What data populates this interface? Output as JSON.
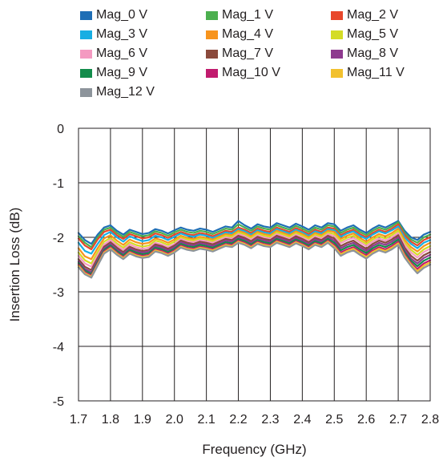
{
  "chart_data": {
    "type": "line",
    "title": "",
    "xlabel": "Frequency (GHz)",
    "ylabel": "Insertion Loss (dB)",
    "xlim": [
      1.7,
      2.8
    ],
    "ylim": [
      -5,
      0
    ],
    "xticks": [
      "1.7",
      "1.8",
      "1.9",
      "2.0",
      "2.1",
      "2.2",
      "2.3",
      "2.4",
      "2.5",
      "2.6",
      "2.7",
      "2.8"
    ],
    "yticks": [
      "0",
      "-1",
      "-2",
      "-3",
      "-4",
      "-5"
    ],
    "grid": true,
    "legend": "top",
    "x": [
      1.7,
      1.72,
      1.74,
      1.76,
      1.78,
      1.8,
      1.82,
      1.84,
      1.86,
      1.88,
      1.9,
      1.92,
      1.94,
      1.96,
      1.98,
      2.0,
      2.02,
      2.04,
      2.06,
      2.08,
      2.1,
      2.12,
      2.14,
      2.16,
      2.18,
      2.2,
      2.22,
      2.24,
      2.26,
      2.28,
      2.3,
      2.32,
      2.34,
      2.36,
      2.38,
      2.4,
      2.42,
      2.44,
      2.46,
      2.48,
      2.5,
      2.52,
      2.54,
      2.56,
      2.58,
      2.6,
      2.62,
      2.64,
      2.66,
      2.68,
      2.7,
      2.72,
      2.74,
      2.76,
      2.78,
      2.8
    ],
    "series": [
      {
        "name": "Mag_0 V",
        "color": "#1f6eb5",
        "values": [
          -1.92,
          -2.05,
          -2.12,
          -1.95,
          -1.82,
          -1.78,
          -1.88,
          -1.95,
          -1.86,
          -1.9,
          -1.94,
          -1.92,
          -1.85,
          -1.88,
          -1.93,
          -1.87,
          -1.82,
          -1.86,
          -1.88,
          -1.84,
          -1.86,
          -1.9,
          -1.85,
          -1.8,
          -1.82,
          -1.7,
          -1.78,
          -1.84,
          -1.76,
          -1.8,
          -1.82,
          -1.74,
          -1.78,
          -1.82,
          -1.75,
          -1.8,
          -1.86,
          -1.78,
          -1.82,
          -1.74,
          -1.76,
          -1.88,
          -1.82,
          -1.78,
          -1.86,
          -1.92,
          -1.84,
          -1.78,
          -1.82,
          -1.76,
          -1.7,
          -1.88,
          -2.0,
          -2.05,
          -1.95,
          -1.9
        ]
      },
      {
        "name": "Mag_1 V",
        "color": "#4caf4f",
        "values": [
          -1.98,
          -2.1,
          -2.18,
          -2.0,
          -1.86,
          -1.82,
          -1.92,
          -1.99,
          -1.9,
          -1.94,
          -1.98,
          -1.96,
          -1.89,
          -1.92,
          -1.97,
          -1.91,
          -1.86,
          -1.9,
          -1.92,
          -1.88,
          -1.9,
          -1.94,
          -1.89,
          -1.84,
          -1.86,
          -1.76,
          -1.82,
          -1.88,
          -1.8,
          -1.84,
          -1.86,
          -1.78,
          -1.82,
          -1.86,
          -1.79,
          -1.84,
          -1.9,
          -1.82,
          -1.86,
          -1.78,
          -1.8,
          -1.92,
          -1.86,
          -1.82,
          -1.9,
          -1.96,
          -1.88,
          -1.82,
          -1.86,
          -1.8,
          -1.72,
          -1.92,
          -2.04,
          -2.1,
          -2.0,
          -1.95
        ]
      },
      {
        "name": "Mag_2 V",
        "color": "#e8472b",
        "values": [
          -2.02,
          -2.15,
          -2.22,
          -2.04,
          -1.9,
          -1.86,
          -1.96,
          -2.03,
          -1.94,
          -1.98,
          -2.02,
          -2.0,
          -1.93,
          -1.96,
          -2.01,
          -1.95,
          -1.9,
          -1.94,
          -1.96,
          -1.92,
          -1.94,
          -1.98,
          -1.93,
          -1.88,
          -1.9,
          -1.82,
          -1.86,
          -1.92,
          -1.84,
          -1.88,
          -1.9,
          -1.82,
          -1.86,
          -1.9,
          -1.83,
          -1.88,
          -1.94,
          -1.86,
          -1.9,
          -1.82,
          -1.84,
          -1.96,
          -1.9,
          -1.86,
          -1.94,
          -2.0,
          -1.92,
          -1.86,
          -1.9,
          -1.84,
          -1.76,
          -1.96,
          -2.08,
          -2.15,
          -2.05,
          -2.0
        ]
      },
      {
        "name": "Mag_3 V",
        "color": "#17aee3",
        "values": [
          -2.1,
          -2.25,
          -2.3,
          -2.12,
          -1.96,
          -1.9,
          -2.0,
          -2.08,
          -1.98,
          -2.03,
          -2.07,
          -2.05,
          -1.97,
          -2.0,
          -2.05,
          -1.99,
          -1.93,
          -1.97,
          -1.99,
          -1.95,
          -1.97,
          -2.01,
          -1.96,
          -1.91,
          -1.93,
          -1.85,
          -1.89,
          -1.95,
          -1.87,
          -1.91,
          -1.93,
          -1.85,
          -1.89,
          -1.93,
          -1.86,
          -1.91,
          -1.97,
          -1.89,
          -1.93,
          -1.85,
          -1.87,
          -1.99,
          -1.93,
          -1.89,
          -1.97,
          -2.03,
          -1.95,
          -1.89,
          -1.93,
          -1.87,
          -1.8,
          -2.0,
          -2.12,
          -2.2,
          -2.1,
          -2.05
        ]
      },
      {
        "name": "Mag_4 V",
        "color": "#f7941d",
        "values": [
          -2.2,
          -2.35,
          -2.4,
          -2.2,
          -2.02,
          -1.96,
          -2.06,
          -2.14,
          -2.04,
          -2.09,
          -2.12,
          -2.1,
          -2.02,
          -2.05,
          -2.1,
          -2.04,
          -1.97,
          -2.01,
          -2.03,
          -1.99,
          -2.01,
          -2.04,
          -1.99,
          -1.94,
          -1.96,
          -1.88,
          -1.92,
          -1.98,
          -1.9,
          -1.94,
          -1.96,
          -1.88,
          -1.92,
          -1.96,
          -1.89,
          -1.94,
          -2.0,
          -1.92,
          -1.96,
          -1.88,
          -1.9,
          -2.03,
          -1.97,
          -1.93,
          -2.01,
          -2.08,
          -2.0,
          -1.94,
          -1.98,
          -1.92,
          -1.84,
          -2.05,
          -2.18,
          -2.26,
          -2.16,
          -2.1
        ]
      },
      {
        "name": "Mag_5 V",
        "color": "#d4dc25",
        "values": [
          -2.28,
          -2.42,
          -2.48,
          -2.27,
          -2.08,
          -2.01,
          -2.11,
          -2.19,
          -2.09,
          -2.14,
          -2.17,
          -2.15,
          -2.06,
          -2.09,
          -2.14,
          -2.08,
          -2.0,
          -2.04,
          -2.06,
          -2.02,
          -2.04,
          -2.07,
          -2.02,
          -1.97,
          -1.99,
          -1.91,
          -1.95,
          -2.01,
          -1.93,
          -1.97,
          -1.99,
          -1.91,
          -1.95,
          -1.99,
          -1.92,
          -1.97,
          -2.03,
          -1.95,
          -1.99,
          -1.91,
          -1.94,
          -2.07,
          -2.01,
          -1.97,
          -2.05,
          -2.12,
          -2.04,
          -1.98,
          -2.02,
          -1.96,
          -1.88,
          -2.1,
          -2.23,
          -2.32,
          -2.22,
          -2.16
        ]
      },
      {
        "name": "Mag_6 V",
        "color": "#f49ac1",
        "values": [
          -2.34,
          -2.48,
          -2.54,
          -2.33,
          -2.13,
          -2.05,
          -2.15,
          -2.23,
          -2.13,
          -2.18,
          -2.21,
          -2.19,
          -2.1,
          -2.13,
          -2.18,
          -2.12,
          -2.03,
          -2.07,
          -2.09,
          -2.05,
          -2.07,
          -2.1,
          -2.05,
          -2.0,
          -2.02,
          -1.94,
          -1.98,
          -2.04,
          -1.96,
          -2.0,
          -2.02,
          -1.94,
          -1.98,
          -2.02,
          -1.95,
          -2.0,
          -2.06,
          -1.98,
          -2.02,
          -1.94,
          -1.98,
          -2.11,
          -2.05,
          -2.01,
          -2.09,
          -2.16,
          -2.08,
          -2.02,
          -2.06,
          -2.0,
          -1.92,
          -2.14,
          -2.28,
          -2.37,
          -2.27,
          -2.21
        ]
      },
      {
        "name": "Mag_7 V",
        "color": "#8b4a3c",
        "values": [
          -2.4,
          -2.54,
          -2.6,
          -2.38,
          -2.17,
          -2.09,
          -2.19,
          -2.27,
          -2.17,
          -2.22,
          -2.25,
          -2.23,
          -2.13,
          -2.16,
          -2.21,
          -2.15,
          -2.06,
          -2.1,
          -2.12,
          -2.08,
          -2.1,
          -2.13,
          -2.08,
          -2.03,
          -2.05,
          -1.97,
          -2.01,
          -2.07,
          -1.99,
          -2.03,
          -2.05,
          -1.97,
          -2.01,
          -2.05,
          -1.98,
          -2.03,
          -2.09,
          -2.01,
          -2.05,
          -1.97,
          -2.02,
          -2.16,
          -2.1,
          -2.06,
          -2.14,
          -2.21,
          -2.12,
          -2.06,
          -2.1,
          -2.04,
          -1.96,
          -2.19,
          -2.34,
          -2.43,
          -2.33,
          -2.27
        ]
      },
      {
        "name": "Mag_8 V",
        "color": "#8e3a8f",
        "values": [
          -2.44,
          -2.58,
          -2.64,
          -2.42,
          -2.2,
          -2.12,
          -2.22,
          -2.3,
          -2.2,
          -2.25,
          -2.28,
          -2.26,
          -2.16,
          -2.19,
          -2.24,
          -2.18,
          -2.09,
          -2.13,
          -2.15,
          -2.11,
          -2.13,
          -2.16,
          -2.11,
          -2.06,
          -2.08,
          -2.0,
          -2.04,
          -2.1,
          -2.02,
          -2.06,
          -2.08,
          -2.0,
          -2.04,
          -2.08,
          -2.01,
          -2.06,
          -2.12,
          -2.04,
          -2.08,
          -2.0,
          -2.06,
          -2.2,
          -2.14,
          -2.1,
          -2.18,
          -2.25,
          -2.16,
          -2.1,
          -2.14,
          -2.08,
          -2.0,
          -2.23,
          -2.39,
          -2.48,
          -2.38,
          -2.32
        ]
      },
      {
        "name": "Mag_9 V",
        "color": "#138c4b",
        "values": [
          -2.47,
          -2.61,
          -2.67,
          -2.45,
          -2.23,
          -2.15,
          -2.25,
          -2.33,
          -2.23,
          -2.28,
          -2.31,
          -2.29,
          -2.19,
          -2.22,
          -2.27,
          -2.21,
          -2.12,
          -2.16,
          -2.18,
          -2.14,
          -2.16,
          -2.19,
          -2.14,
          -2.09,
          -2.11,
          -2.03,
          -2.07,
          -2.13,
          -2.05,
          -2.09,
          -2.11,
          -2.03,
          -2.07,
          -2.11,
          -2.04,
          -2.09,
          -2.15,
          -2.07,
          -2.11,
          -2.03,
          -2.1,
          -2.24,
          -2.18,
          -2.14,
          -2.22,
          -2.29,
          -2.2,
          -2.14,
          -2.18,
          -2.12,
          -2.04,
          -2.27,
          -2.43,
          -2.53,
          -2.43,
          -2.37
        ]
      },
      {
        "name": "Mag_10 V",
        "color": "#c11b6e",
        "values": [
          -2.5,
          -2.64,
          -2.7,
          -2.48,
          -2.26,
          -2.18,
          -2.28,
          -2.36,
          -2.26,
          -2.31,
          -2.34,
          -2.32,
          -2.22,
          -2.25,
          -2.3,
          -2.24,
          -2.15,
          -2.19,
          -2.21,
          -2.17,
          -2.19,
          -2.22,
          -2.17,
          -2.12,
          -2.14,
          -2.06,
          -2.1,
          -2.16,
          -2.08,
          -2.12,
          -2.14,
          -2.06,
          -2.1,
          -2.14,
          -2.07,
          -2.12,
          -2.18,
          -2.1,
          -2.14,
          -2.06,
          -2.14,
          -2.28,
          -2.22,
          -2.18,
          -2.26,
          -2.33,
          -2.24,
          -2.18,
          -2.22,
          -2.16,
          -2.08,
          -2.31,
          -2.47,
          -2.58,
          -2.48,
          -2.42
        ]
      },
      {
        "name": "Mag_11 V",
        "color": "#f2c12e",
        "values": [
          -2.52,
          -2.66,
          -2.72,
          -2.5,
          -2.28,
          -2.2,
          -2.3,
          -2.38,
          -2.28,
          -2.33,
          -2.36,
          -2.34,
          -2.24,
          -2.27,
          -2.32,
          -2.26,
          -2.17,
          -2.21,
          -2.23,
          -2.19,
          -2.21,
          -2.24,
          -2.19,
          -2.14,
          -2.16,
          -2.08,
          -2.12,
          -2.18,
          -2.1,
          -2.14,
          -2.16,
          -2.08,
          -2.12,
          -2.16,
          -2.09,
          -2.14,
          -2.2,
          -2.12,
          -2.16,
          -2.08,
          -2.17,
          -2.31,
          -2.25,
          -2.21,
          -2.29,
          -2.36,
          -2.27,
          -2.21,
          -2.25,
          -2.19,
          -2.11,
          -2.34,
          -2.5,
          -2.62,
          -2.52,
          -2.46
        ]
      },
      {
        "name": "Mag_12 V",
        "color": "#8d949b",
        "values": [
          -2.55,
          -2.68,
          -2.74,
          -2.52,
          -2.3,
          -2.22,
          -2.32,
          -2.4,
          -2.3,
          -2.35,
          -2.38,
          -2.36,
          -2.26,
          -2.29,
          -2.34,
          -2.28,
          -2.19,
          -2.23,
          -2.25,
          -2.21,
          -2.23,
          -2.26,
          -2.21,
          -2.16,
          -2.18,
          -2.1,
          -2.14,
          -2.2,
          -2.12,
          -2.16,
          -2.18,
          -2.1,
          -2.14,
          -2.18,
          -2.11,
          -2.16,
          -2.22,
          -2.14,
          -2.18,
          -2.1,
          -2.2,
          -2.34,
          -2.28,
          -2.24,
          -2.32,
          -2.39,
          -2.3,
          -2.24,
          -2.28,
          -2.22,
          -2.14,
          -2.37,
          -2.53,
          -2.66,
          -2.56,
          -2.5
        ]
      }
    ]
  }
}
